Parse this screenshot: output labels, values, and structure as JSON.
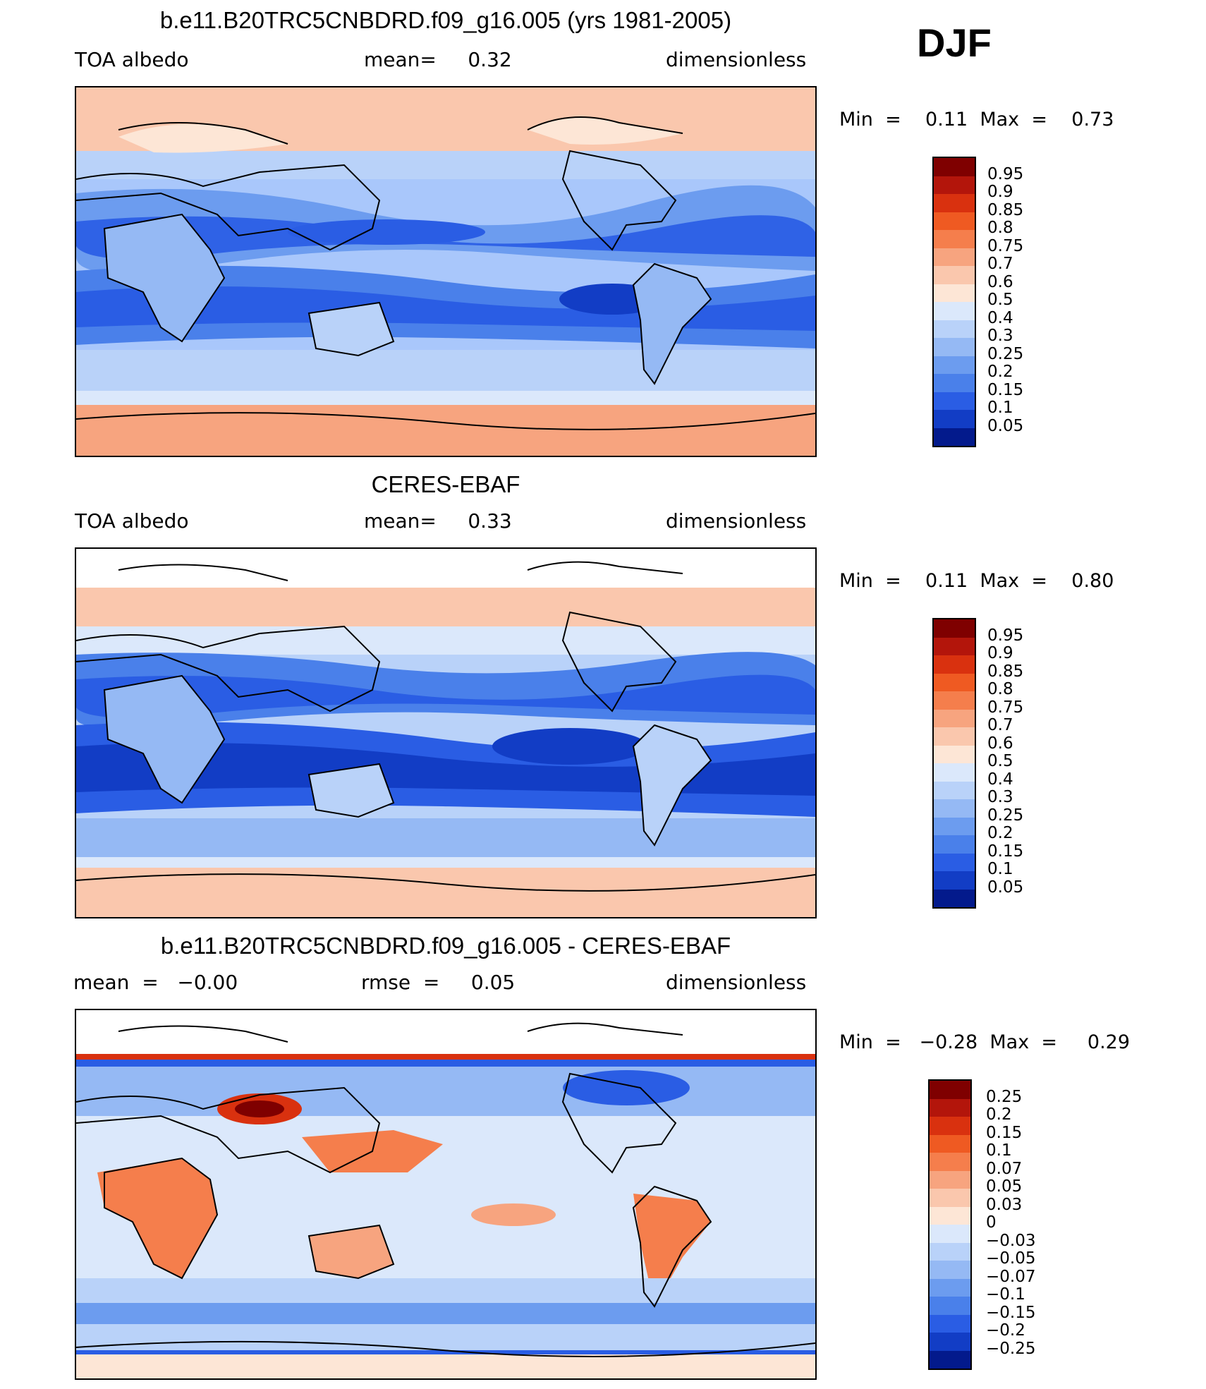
{
  "season": "DJF",
  "panels": [
    {
      "title": "b.e11.B20TRC5CNBDRD.f09_g16.005 (yrs 1981-2005)",
      "left_label": "TOA  albedo",
      "center_label": "mean=     0.32",
      "right_label": "dimensionless",
      "min_label": "Min  =",
      "min_value": "0.11",
      "max_label": "Max  =",
      "max_value": "0.73",
      "colorbar_labels": [
        "0.95",
        "0.9",
        "0.85",
        "0.8",
        "0.75",
        "0.7",
        "0.6",
        "0.5",
        "0.4",
        "0.3",
        "0.25",
        "0.2",
        "0.15",
        "0.1",
        "0.05"
      ]
    },
    {
      "title": "CERES-EBAF",
      "left_label": "TOA  albedo",
      "center_label": "mean=     0.33",
      "right_label": "dimensionless",
      "min_label": "Min  =",
      "min_value": "0.11",
      "max_label": "Max  =",
      "max_value": "0.80",
      "colorbar_labels": [
        "0.95",
        "0.9",
        "0.85",
        "0.8",
        "0.75",
        "0.7",
        "0.6",
        "0.5",
        "0.4",
        "0.3",
        "0.25",
        "0.2",
        "0.15",
        "0.1",
        "0.05"
      ]
    },
    {
      "title": "b.e11.B20TRC5CNBDRD.f09_g16.005 - CERES-EBAF",
      "left_label": "mean  =   −0.00",
      "center_label": "rmse  =     0.05",
      "right_label": "dimensionless",
      "min_label": "Min  =",
      "min_value": "−0.28",
      "max_label": "Max  =",
      "max_value": "0.29",
      "colorbar_labels": [
        "0.25",
        "0.2",
        "0.15",
        "0.1",
        "0.07",
        "0.05",
        "0.03",
        "0",
        "−0.03",
        "−0.05",
        "−0.07",
        "−0.1",
        "−0.15",
        "−0.2",
        "−0.25"
      ]
    }
  ],
  "colors": {
    "palette_16": [
      "#7f0000",
      "#b3150b",
      "#d9310f",
      "#ef5a22",
      "#f57e4c",
      "#f7a47f",
      "#fac7ad",
      "#fde6d6",
      "#dbe8fb",
      "#b9d2f9",
      "#95b9f4",
      "#6c9cef",
      "#4a80ea",
      "#2a5de4",
      "#123dc5",
      "#031a8c"
    ],
    "land_outline": "#000000",
    "polar_warm": "#f6b798",
    "mid_cool": "#a9c7fb",
    "band_cool": "#2f62e6",
    "band_dark": "#1b45d6"
  }
}
